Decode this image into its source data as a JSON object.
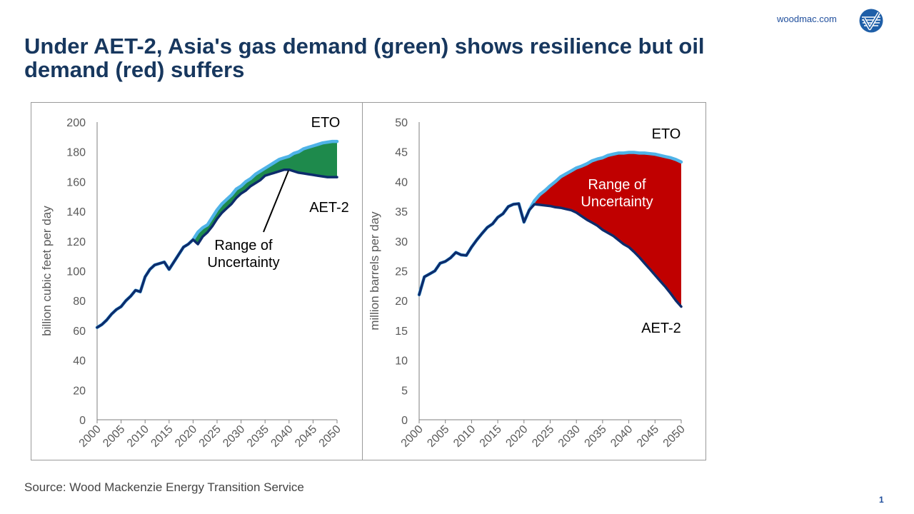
{
  "header": {
    "site": "woodmac.com",
    "title": "Under AET-2, Asia's gas demand (green) shows resilience but oil demand (red) suffers"
  },
  "footer": {
    "source": "Source: Wood Mackenzie Energy Transition Service",
    "page_number": "1"
  },
  "chart_data": [
    {
      "type": "line",
      "ylabel": "billion cubic feet per day",
      "ylim": [
        0,
        200
      ],
      "yticks": [
        0,
        20,
        40,
        60,
        80,
        100,
        120,
        140,
        160,
        180,
        200
      ],
      "xlim": [
        2000,
        2050
      ],
      "xticks": [
        "2000",
        "2005",
        "2010",
        "2015",
        "2020",
        "2025",
        "2030",
        "2035",
        "2040",
        "2045",
        "2050"
      ],
      "band_color": "#1e8a4c",
      "fill_label": "Range of Uncertainty",
      "series": [
        {
          "name": "ETO",
          "color": "#4fb3e8",
          "x": [
            2000,
            2001,
            2002,
            2003,
            2004,
            2005,
            2006,
            2007,
            2008,
            2009,
            2010,
            2011,
            2012,
            2013,
            2014,
            2015,
            2016,
            2017,
            2018,
            2019,
            2020,
            2021,
            2022,
            2023,
            2024,
            2025,
            2026,
            2027,
            2028,
            2029,
            2030,
            2031,
            2032,
            2033,
            2034,
            2035,
            2036,
            2037,
            2038,
            2039,
            2040,
            2041,
            2042,
            2043,
            2044,
            2045,
            2046,
            2047,
            2048,
            2049,
            2050
          ],
          "values": [
            62,
            64,
            67,
            71,
            74,
            76,
            80,
            83,
            87,
            86,
            96,
            101,
            104,
            105,
            106,
            101,
            106,
            111,
            116,
            118,
            121,
            126,
            129,
            131,
            136,
            141,
            145,
            148,
            151,
            155,
            157,
            160,
            162,
            165,
            167,
            169,
            171,
            173,
            175,
            176,
            177,
            179,
            180,
            182,
            183,
            184,
            185,
            186,
            186.5,
            187,
            187
          ]
        },
        {
          "name": "AET-2",
          "color": "#0d2c6c",
          "x": [
            2000,
            2001,
            2002,
            2003,
            2004,
            2005,
            2006,
            2007,
            2008,
            2009,
            2010,
            2011,
            2012,
            2013,
            2014,
            2015,
            2016,
            2017,
            2018,
            2019,
            2020,
            2021,
            2022,
            2023,
            2024,
            2025,
            2026,
            2027,
            2028,
            2029,
            2030,
            2031,
            2032,
            2033,
            2034,
            2035,
            2036,
            2037,
            2038,
            2039,
            2040,
            2041,
            2042,
            2043,
            2044,
            2045,
            2046,
            2047,
            2048,
            2049,
            2050
          ],
          "values": [
            62,
            64,
            67,
            71,
            74,
            76,
            80,
            83,
            87,
            86,
            96,
            101,
            104,
            105,
            106,
            101,
            106,
            111,
            116,
            118,
            121,
            118,
            123,
            126,
            130,
            135,
            139,
            142,
            145,
            149,
            152,
            154,
            157,
            159,
            161,
            164,
            165,
            166,
            167,
            168,
            168,
            167,
            166,
            165.5,
            165,
            164.5,
            164,
            163.5,
            163,
            163,
            163
          ]
        }
      ]
    },
    {
      "type": "line",
      "ylabel": "million barrels per day",
      "ylim": [
        0,
        50
      ],
      "yticks": [
        0,
        5,
        10,
        15,
        20,
        25,
        30,
        35,
        40,
        45,
        50
      ],
      "xlim": [
        2000,
        2050
      ],
      "xticks": [
        "2000",
        "2005",
        "2010",
        "2015",
        "2020",
        "2025",
        "2030",
        "2035",
        "2040",
        "2045",
        "2050"
      ],
      "band_color": "#c00000",
      "fill_label": "Range of Uncertainty",
      "series": [
        {
          "name": "ETO",
          "color": "#4fb3e8",
          "x": [
            2000,
            2001,
            2002,
            2003,
            2004,
            2005,
            2006,
            2007,
            2008,
            2009,
            2010,
            2011,
            2012,
            2013,
            2014,
            2015,
            2016,
            2017,
            2018,
            2019,
            2020,
            2021,
            2022,
            2023,
            2024,
            2025,
            2026,
            2027,
            2028,
            2029,
            2030,
            2031,
            2032,
            2033,
            2034,
            2035,
            2036,
            2037,
            2038,
            2039,
            2040,
            2041,
            2042,
            2043,
            2044,
            2045,
            2046,
            2047,
            2048,
            2049,
            2050
          ],
          "values": [
            21,
            24,
            24.5,
            25,
            26.3,
            26.6,
            27.2,
            28.1,
            27.7,
            27.6,
            29,
            30.2,
            31.3,
            32.3,
            32.9,
            34,
            34.6,
            35.8,
            36.2,
            36.3,
            33.2,
            35.2,
            36.8,
            37.8,
            38.5,
            39.3,
            40,
            40.8,
            41.3,
            41.8,
            42.3,
            42.6,
            43,
            43.5,
            43.8,
            44,
            44.4,
            44.6,
            44.8,
            44.8,
            44.9,
            44.9,
            44.8,
            44.8,
            44.7,
            44.6,
            44.4,
            44.2,
            44,
            43.7,
            43.3
          ]
        },
        {
          "name": "AET-2",
          "color": "#0d2c6c",
          "x": [
            2000,
            2001,
            2002,
            2003,
            2004,
            2005,
            2006,
            2007,
            2008,
            2009,
            2010,
            2011,
            2012,
            2013,
            2014,
            2015,
            2016,
            2017,
            2018,
            2019,
            2020,
            2021,
            2022,
            2023,
            2024,
            2025,
            2026,
            2027,
            2028,
            2029,
            2030,
            2031,
            2032,
            2033,
            2034,
            2035,
            2036,
            2037,
            2038,
            2039,
            2040,
            2041,
            2042,
            2043,
            2044,
            2045,
            2046,
            2047,
            2048,
            2049,
            2050
          ],
          "values": [
            21,
            24,
            24.5,
            25,
            26.3,
            26.6,
            27.2,
            28.1,
            27.7,
            27.6,
            29,
            30.2,
            31.3,
            32.3,
            32.9,
            34,
            34.6,
            35.8,
            36.2,
            36.3,
            33.2,
            35.2,
            36.2,
            36.1,
            36,
            35.9,
            35.7,
            35.6,
            35.4,
            35.2,
            34.8,
            34.2,
            33.6,
            33.1,
            32.6,
            31.9,
            31.4,
            30.9,
            30.2,
            29.5,
            29,
            28.2,
            27.3,
            26.3,
            25.3,
            24.3,
            23.3,
            22.3,
            21.2,
            20,
            19
          ]
        }
      ]
    }
  ]
}
